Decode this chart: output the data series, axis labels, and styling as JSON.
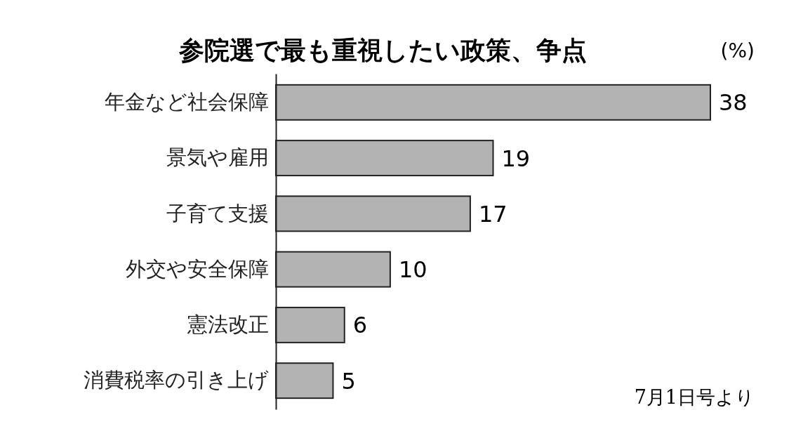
{
  "chart_data": {
    "type": "bar",
    "orientation": "horizontal",
    "title": "参院選で最も重視したい政策、争点",
    "xlabel": "(%)",
    "categories": [
      "年金など社会保障",
      "景気や雇用",
      "子育て支援",
      "外交や安全保障",
      "憲法改正",
      "消費税率の引き上げ"
    ],
    "values": [
      38,
      19,
      17,
      10,
      6,
      5
    ],
    "color": "#b3b3b3",
    "tick_labels": "y",
    "data_labels": true,
    "annotations": [
      "7月1日号より"
    ]
  }
}
